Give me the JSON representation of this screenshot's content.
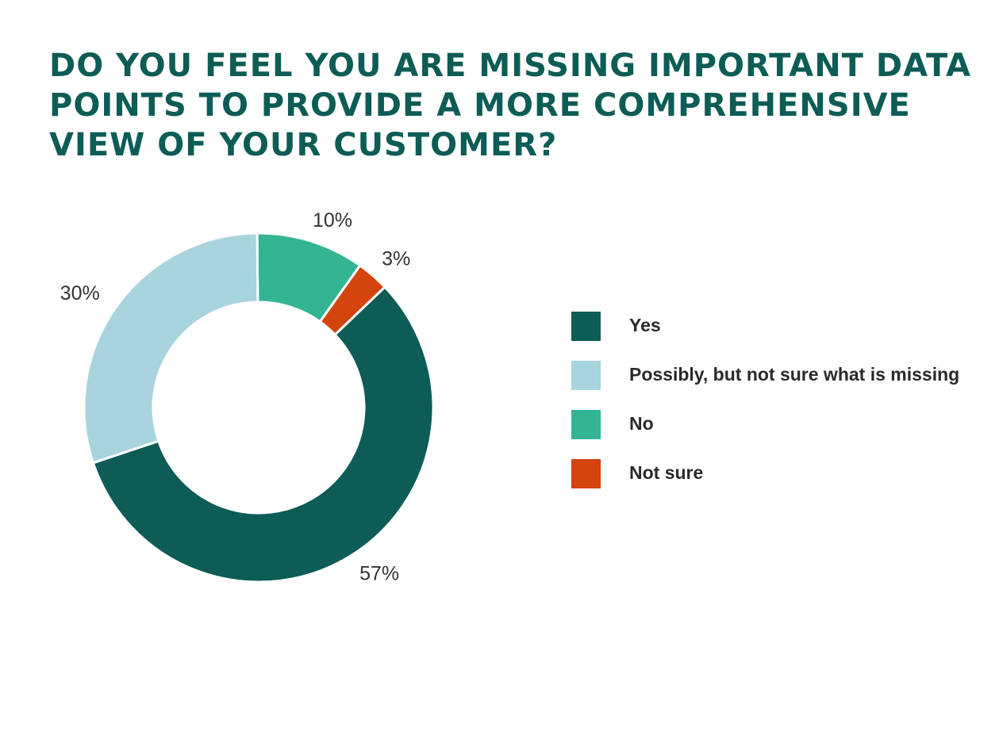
{
  "title": "DO YOU FEEL YOU ARE MISSING IMPORTANT DATA POINTS TO PROVIDE A MORE COMPREHENSIVE VIEW OF YOUR CUSTOMER?",
  "chart_data": {
    "type": "pie",
    "donut": true,
    "categories": [
      "Yes",
      "Possibly, but not sure what is missing",
      "No",
      "Not sure"
    ],
    "values": [
      57,
      30,
      10,
      3
    ],
    "labels": [
      "57%",
      "30%",
      "10%",
      "3%"
    ],
    "colors": [
      "#0d5c56",
      "#a8d4dd",
      "#33b594",
      "#d3440f"
    ],
    "legend_position": "right"
  },
  "legend": {
    "items": [
      {
        "label": "Yes",
        "color": "#0d5c56"
      },
      {
        "label": "Possibly, but not sure what is missing",
        "color": "#a8d4dd"
      },
      {
        "label": "No",
        "color": "#33b594"
      },
      {
        "label": "Not sure",
        "color": "#d3440f"
      }
    ]
  }
}
